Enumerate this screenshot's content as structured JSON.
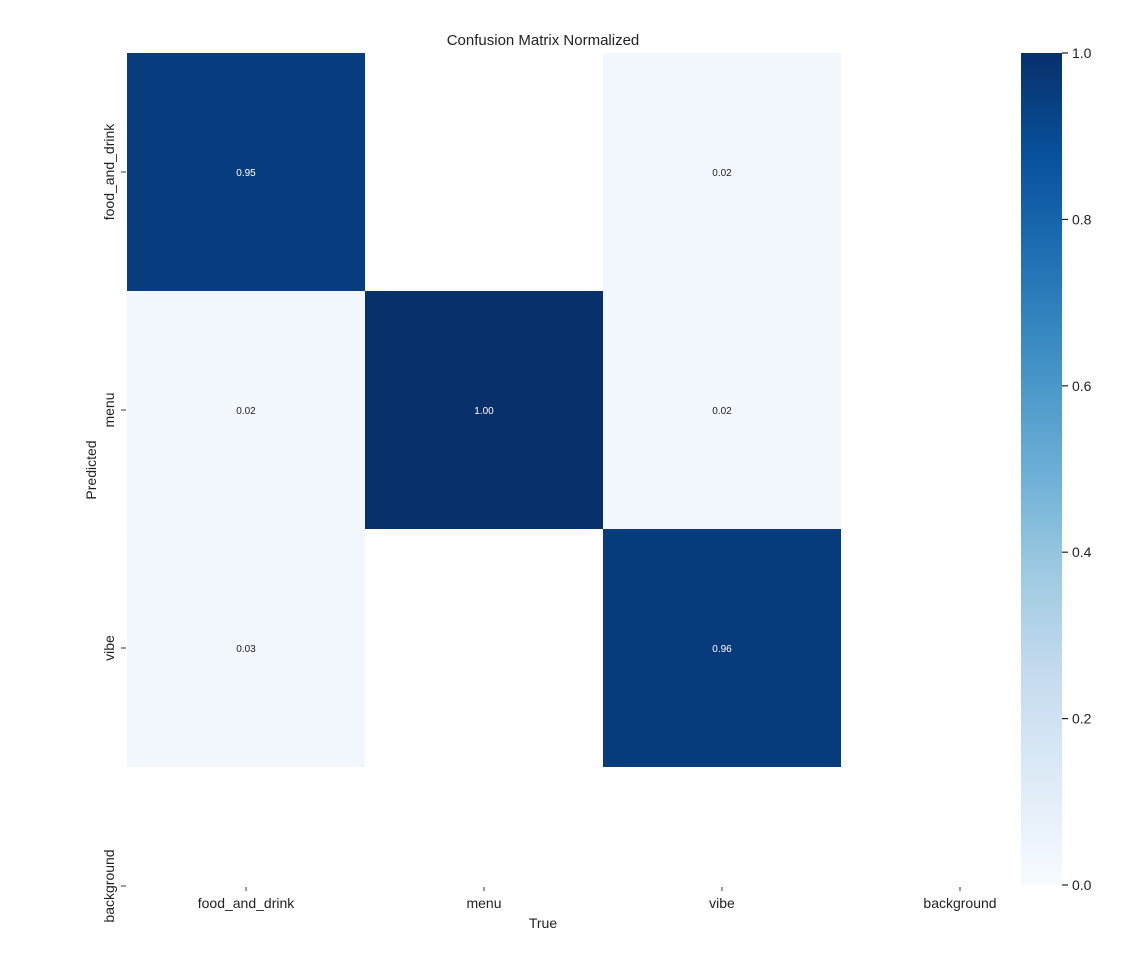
{
  "chart_data": {
    "type": "heatmap",
    "title": "Confusion Matrix Normalized",
    "xlabel": "True",
    "ylabel": "Predicted",
    "x_categories": [
      "food_and_drink",
      "menu",
      "vibe",
      "background"
    ],
    "y_categories": [
      "food_and_drink",
      "menu",
      "vibe",
      "background"
    ],
    "values": [
      [
        0.95,
        null,
        0.02,
        null
      ],
      [
        0.02,
        1.0,
        0.02,
        null
      ],
      [
        0.03,
        null,
        0.96,
        null
      ],
      [
        null,
        null,
        null,
        null
      ]
    ],
    "value_labels": [
      [
        "0.95",
        "",
        "0.02",
        ""
      ],
      [
        "0.02",
        "1.00",
        "0.02",
        ""
      ],
      [
        "0.03",
        "",
        "0.96",
        ""
      ],
      [
        "",
        "",
        "",
        ""
      ]
    ],
    "colorbar": {
      "range": [
        0.0,
        1.0
      ],
      "ticks": [
        "0.0",
        "0.2",
        "0.4",
        "0.6",
        "0.8",
        "1.0"
      ],
      "tick_values": [
        0.0,
        0.2,
        0.4,
        0.6,
        0.8,
        1.0
      ],
      "colormap": "Blues",
      "colormap_stops": [
        "#f7fbff",
        "#deebf7",
        "#c6dbef",
        "#9ecae1",
        "#6baed6",
        "#4292c6",
        "#2171b5",
        "#08519c",
        "#08306b"
      ]
    },
    "colors": {
      "cell_1.00": "#15306a",
      "cell_0.95": "#1b3a78",
      "cell_0.96": "#1a3977",
      "cell_low": "#f2f7fc",
      "dark_text": "#222222",
      "light_text": "#ffffff"
    }
  }
}
